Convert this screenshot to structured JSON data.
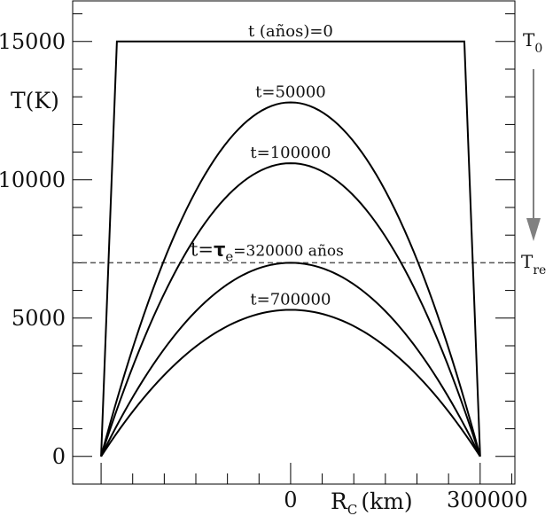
{
  "chart_data": {
    "type": "line",
    "xlabel_main": "R",
    "xlabel_sub": "C",
    "xlabel_unit": "(km)",
    "ylabel": "T(K)",
    "xlim": [
      -345000,
      355000
    ],
    "ylim": [
      -1000,
      16500
    ],
    "x_ticks": [
      {
        "value": 0,
        "label": "0"
      },
      {
        "value": 300000,
        "label": "300000"
      }
    ],
    "y_ticks": [
      {
        "value": 0,
        "label": "0"
      },
      {
        "value": 5000,
        "label": "5000"
      },
      {
        "value": 10000,
        "label": "10000"
      },
      {
        "value": 15000,
        "label": "15000"
      }
    ],
    "x_minor_step": 50000,
    "y_minor_step": 1000,
    "edge": 300000,
    "series": [
      {
        "label": "t (años)=0",
        "shape": "plateau",
        "peak": 15000,
        "plateau_halfwidth": 300000
      },
      {
        "label": "t=50000",
        "shape": "dome",
        "peak": 12800
      },
      {
        "label": "t=100000",
        "shape": "dome",
        "peak": 10600
      },
      {
        "label_prefix": "t=",
        "label_tau": "τ",
        "label_tau_sub": "e",
        "label_suffix": "=320000 años",
        "shape": "dome",
        "peak": 7000
      },
      {
        "label": "t=700000",
        "shape": "dome",
        "peak": 5300
      }
    ],
    "reference_line": {
      "value": 7000,
      "label_main": "T",
      "label_sub": "re"
    },
    "start_marker": {
      "label_main": "T",
      "label_sub": "0"
    },
    "colors": {
      "curves": "#000000",
      "reference": "#555555",
      "arrow": "#808080",
      "axes": "#000000"
    }
  }
}
